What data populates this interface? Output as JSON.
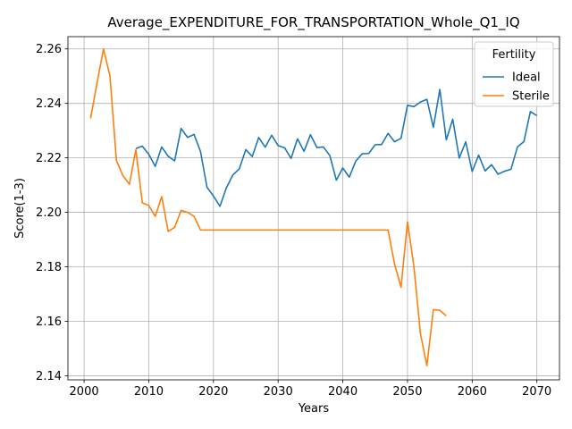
{
  "chart_data": {
    "type": "line",
    "title": "Average_EXPENDITURE_FOR_TRANSPORTATION_Whole_Q1_IQ",
    "xlabel": "Years",
    "ylabel": "Score(1-3)",
    "xlim": [
      1997.5,
      2073.5
    ],
    "ylim": [
      2.1385,
      2.2645
    ],
    "xticks": [
      2000,
      2010,
      2020,
      2030,
      2040,
      2050,
      2060,
      2070
    ],
    "yticks": [
      2.14,
      2.16,
      2.18,
      2.2,
      2.22,
      2.24,
      2.26
    ],
    "ytick_labels": [
      "2.14",
      "2.16",
      "2.18",
      "2.20",
      "2.22",
      "2.24",
      "2.26"
    ],
    "grid": true,
    "legend": {
      "title": "Fertility",
      "position": "top-right"
    },
    "series": [
      {
        "name": "Ideal",
        "color": "#1f77b4",
        "x": [
          2008,
          2009,
          2010,
          2011,
          2012,
          2013,
          2014,
          2015,
          2016,
          2017,
          2018,
          2019,
          2020,
          2021,
          2022,
          2023,
          2024,
          2025,
          2026,
          2027,
          2028,
          2029,
          2030,
          2031,
          2032,
          2033,
          2034,
          2035,
          2036,
          2037,
          2038,
          2039,
          2040,
          2041,
          2042,
          2043,
          2044,
          2045,
          2046,
          2047,
          2048,
          2049,
          2050,
          2051,
          2052,
          2053,
          2054,
          2055,
          2056,
          2057,
          2058,
          2059,
          2060,
          2061,
          2062,
          2063,
          2064,
          2065,
          2066,
          2067,
          2068,
          2069,
          2070
        ],
        "y": [
          2.2234,
          2.2243,
          2.2213,
          2.2169,
          2.224,
          2.2206,
          2.2189,
          2.2308,
          2.2275,
          2.2286,
          2.2223,
          2.2092,
          2.206,
          2.2022,
          2.209,
          2.2137,
          2.216,
          2.223,
          2.2205,
          2.2275,
          2.2239,
          2.2283,
          2.2245,
          2.2237,
          2.2198,
          2.227,
          2.2224,
          2.2285,
          2.2238,
          2.224,
          2.2208,
          2.2118,
          2.2163,
          2.2129,
          2.2188,
          2.2215,
          2.2216,
          2.2248,
          2.2249,
          2.229,
          2.2259,
          2.2272,
          2.2393,
          2.2388,
          2.2405,
          2.2415,
          2.2312,
          2.2451,
          2.2266,
          2.2342,
          2.2199,
          2.2259,
          2.215,
          2.221,
          2.2152,
          2.2175,
          2.214,
          2.2151,
          2.2158,
          2.224,
          2.226,
          2.237,
          2.2355
        ]
      },
      {
        "name": "Sterile",
        "color": "#ff7f0e",
        "x": [
          2001,
          2002,
          2003,
          2004,
          2005,
          2006,
          2007,
          2008,
          2009,
          2010,
          2011,
          2012,
          2013,
          2014,
          2015,
          2016,
          2017,
          2018,
          2019,
          2020,
          2021,
          2022,
          2023,
          2024,
          2025,
          2026,
          2027,
          2028,
          2029,
          2030,
          2031,
          2032,
          2033,
          2034,
          2035,
          2036,
          2037,
          2038,
          2039,
          2040,
          2041,
          2042,
          2043,
          2044,
          2045,
          2046,
          2047,
          2048,
          2049,
          2050,
          2051,
          2052,
          2053,
          2054,
          2055,
          2056
        ],
        "y": [
          2.2345,
          2.2475,
          2.26,
          2.25,
          2.219,
          2.2135,
          2.2103,
          2.223,
          2.2035,
          2.2025,
          2.1985,
          2.2058,
          2.193,
          2.1945,
          2.2007,
          2.2,
          2.1985,
          2.1935,
          2.1935,
          2.1935,
          2.1935,
          2.1935,
          2.1935,
          2.1935,
          2.1935,
          2.1935,
          2.1935,
          2.1935,
          2.1935,
          2.1935,
          2.1935,
          2.1935,
          2.1935,
          2.1935,
          2.1935,
          2.1935,
          2.1935,
          2.1935,
          2.1935,
          2.1935,
          2.1935,
          2.1935,
          2.1935,
          2.1935,
          2.1935,
          2.1935,
          2.1935,
          2.181,
          2.1725,
          2.1965,
          2.18,
          2.1555,
          2.1437,
          2.1643,
          2.164,
          2.162
        ]
      }
    ]
  }
}
